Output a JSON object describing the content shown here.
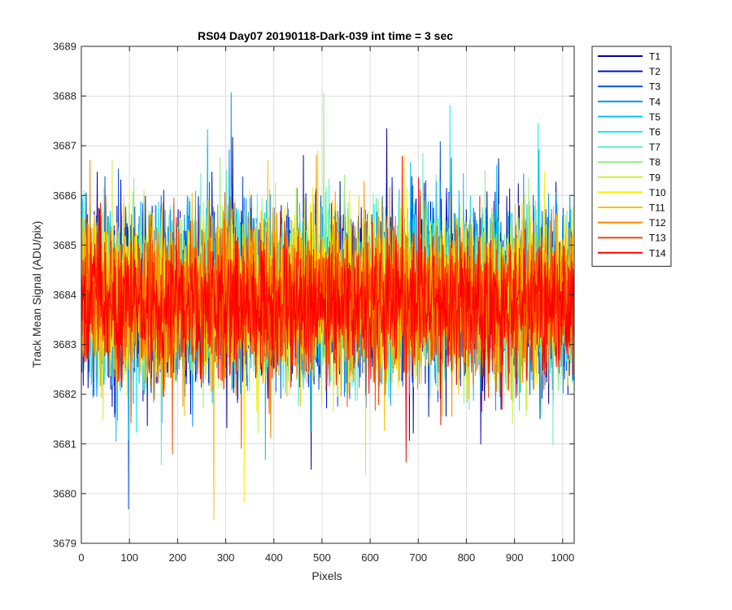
{
  "chart_data": {
    "type": "line",
    "title": "RS04 Day07 20190118-Dark-039 int time = 3 sec",
    "xlabel": "Pixels",
    "ylabel": "Track Mean Signal (ADU/pix)",
    "xlim": [
      0,
      1024
    ],
    "ylim": [
      3679,
      3689
    ],
    "xticks": [
      0,
      100,
      200,
      300,
      400,
      500,
      600,
      700,
      800,
      900,
      1000
    ],
    "yticks": [
      3679,
      3680,
      3681,
      3682,
      3683,
      3684,
      3685,
      3686,
      3687,
      3688,
      3689
    ],
    "grid": true,
    "legend_position": "outside-top-right",
    "n_points_per_series": 1024,
    "series": [
      {
        "name": "T1",
        "color": "#0000aa",
        "mean": 3684.0,
        "spread": 1.25
      },
      {
        "name": "T2",
        "color": "#0010d0",
        "mean": 3684.0,
        "spread": 1.25
      },
      {
        "name": "T3",
        "color": "#0050e6",
        "mean": 3684.0,
        "spread": 1.2
      },
      {
        "name": "T4",
        "color": "#0094f0",
        "mean": 3684.0,
        "spread": 1.2
      },
      {
        "name": "T5",
        "color": "#00c0f8",
        "mean": 3684.0,
        "spread": 1.15
      },
      {
        "name": "T6",
        "color": "#10f0f0",
        "mean": 3684.0,
        "spread": 1.15
      },
      {
        "name": "T7",
        "color": "#5af0c0",
        "mean": 3684.0,
        "spread": 1.15
      },
      {
        "name": "T8",
        "color": "#90f080",
        "mean": 3684.0,
        "spread": 1.15
      },
      {
        "name": "T9",
        "color": "#c8f040",
        "mean": 3684.0,
        "spread": 1.15
      },
      {
        "name": "T10",
        "color": "#f8f000",
        "mean": 3684.0,
        "spread": 1.15
      },
      {
        "name": "T11",
        "color": "#f8c000",
        "mean": 3683.9,
        "spread": 1.1
      },
      {
        "name": "T12",
        "color": "#f88800",
        "mean": 3683.9,
        "spread": 1.1
      },
      {
        "name": "T13",
        "color": "#f84800",
        "mean": 3683.9,
        "spread": 1.05
      },
      {
        "name": "T14",
        "color": "#ff0000",
        "mean": 3683.8,
        "spread": 1.0
      }
    ]
  }
}
